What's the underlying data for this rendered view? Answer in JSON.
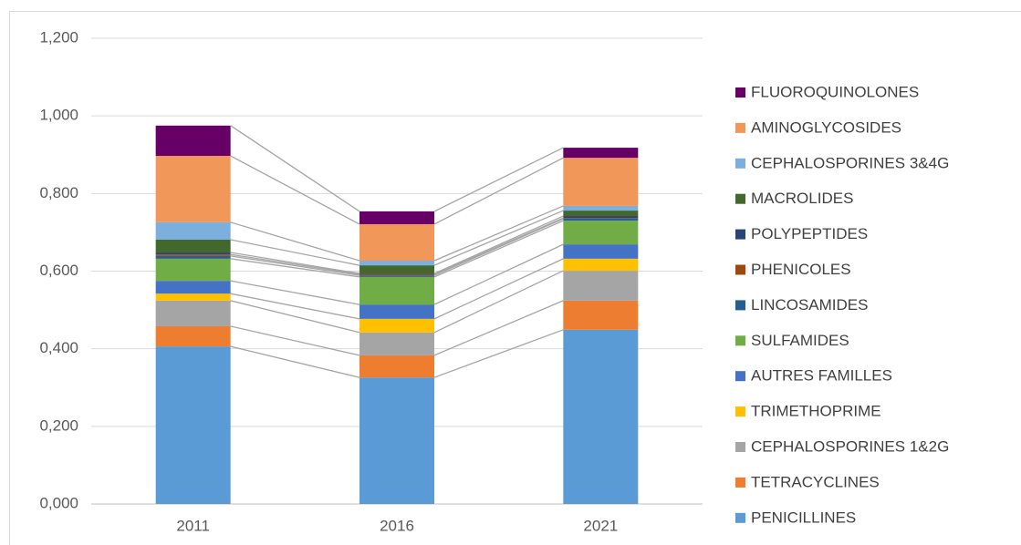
{
  "chart_data": {
    "type": "stacked_bar",
    "categories": [
      "2011",
      "2016",
      "2021"
    ],
    "series": [
      {
        "name": "PENICILLINES",
        "color": "#5b9bd5",
        "values": [
          0.406,
          0.326,
          0.449
        ]
      },
      {
        "name": "TETRACYCLINES",
        "color": "#ed7d31",
        "values": [
          0.052,
          0.057,
          0.075
        ]
      },
      {
        "name": "CEPHALOSPORINES 1&2G",
        "color": "#a5a5a5",
        "values": [
          0.066,
          0.059,
          0.077
        ]
      },
      {
        "name": "TRIMETHOPRIME",
        "color": "#ffc000",
        "values": [
          0.018,
          0.035,
          0.031
        ]
      },
      {
        "name": "AUTRES FAMILLES",
        "color": "#4472c4",
        "values": [
          0.033,
          0.037,
          0.037
        ]
      },
      {
        "name": "SULFAMIDES",
        "color": "#70ad47",
        "values": [
          0.057,
          0.071,
          0.061
        ]
      },
      {
        "name": "LINCOSAMIDES",
        "color": "#255e91",
        "values": [
          0.007,
          0.004,
          0.005
        ]
      },
      {
        "name": "PHENICOLES",
        "color": "#9e480e",
        "values": [
          0.004,
          0.003,
          0.002
        ]
      },
      {
        "name": "POLYPEPTIDES",
        "color": "#264478",
        "values": [
          0.005,
          0.002,
          0.005
        ]
      },
      {
        "name": "MACROLIDES",
        "color": "#43682b",
        "values": [
          0.033,
          0.021,
          0.014
        ]
      },
      {
        "name": "CEPHALOSPORINES 3&4G",
        "color": "#7cafdd",
        "values": [
          0.045,
          0.012,
          0.012
        ]
      },
      {
        "name": "AMINOGLYCOSIDES",
        "color": "#f1975a",
        "values": [
          0.171,
          0.094,
          0.124
        ]
      },
      {
        "name": "FLUOROQUINOLONES",
        "color": "#660066",
        "values": [
          0.078,
          0.033,
          0.026
        ]
      }
    ],
    "ylim": [
      0,
      1.2
    ],
    "yticks": [
      {
        "value": 0,
        "label": "0,000"
      },
      {
        "value": 0.2,
        "label": "0,200"
      },
      {
        "value": 0.4,
        "label": "0,400"
      },
      {
        "value": 0.6,
        "label": "0,600"
      },
      {
        "value": 0.8,
        "label": "0,800"
      },
      {
        "value": 1.0,
        "label": "1,000"
      },
      {
        "value": 1.2,
        "label": "1,200"
      }
    ],
    "grid": true,
    "series_lines": true,
    "legend": "right"
  }
}
